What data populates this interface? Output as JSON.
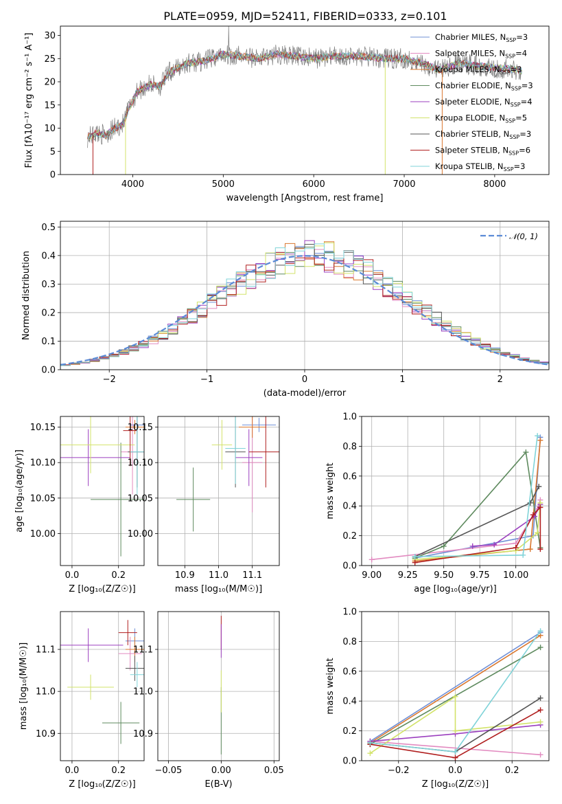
{
  "figure": {
    "title": "PLATE=0959, MJD=52411, FIBERID=0333, z=0.101"
  },
  "palette": {
    "Chabrier MILES": "#6f8fd6",
    "Salpeter MILES": "#e28ac0",
    "Kroupa MILES": "#d9772e",
    "Chabrier ELODIE": "#5e8a5e",
    "Salpeter ELODIE": "#9b3fbf",
    "Kroupa ELODIE": "#d2e36a",
    "Chabrier STELIB": "#555555",
    "Salpeter STELIB": "#b01e1e",
    "Kroupa STELIB": "#7fd3d8"
  },
  "chart_data": [
    {
      "id": "spectrum",
      "type": "line",
      "xlabel": "wavelength [Angstrom, rest frame]",
      "ylabel": "Flux [fλ10⁻¹⁷ erg cm⁻² s⁻¹ A⁻¹]",
      "xlim": [
        3200,
        8600
      ],
      "ylim": [
        0,
        32
      ],
      "xticks": [
        4000,
        5000,
        6000,
        7000,
        8000
      ],
      "yticks": [
        0,
        5,
        10,
        15,
        20,
        25,
        30
      ],
      "grid": false,
      "legend_position": "right",
      "legend": [
        {
          "name": "Chabrier MILES",
          "sub": "SSP",
          "n": "3"
        },
        {
          "name": "Salpeter MILES",
          "sub": "SSP",
          "n": "4"
        },
        {
          "name": "Kroupa MILES",
          "sub": "SSP",
          "n": "3"
        },
        {
          "name": "Chabrier ELODIE",
          "sub": "SSP",
          "n": "3"
        },
        {
          "name": "Salpeter ELODIE",
          "sub": "SSP",
          "n": "4"
        },
        {
          "name": "Kroupa ELODIE",
          "sub": "SSP",
          "n": "5"
        },
        {
          "name": "Chabrier STELIB",
          "sub": "SSP",
          "n": "3"
        },
        {
          "name": "Salpeter STELIB",
          "sub": "SSP",
          "n": "6"
        },
        {
          "name": "Kroupa STELIB",
          "sub": "SSP",
          "n": "3"
        }
      ],
      "continuum": [
        [
          3500,
          8
        ],
        [
          3600,
          9
        ],
        [
          3700,
          8.5
        ],
        [
          3800,
          10
        ],
        [
          3900,
          11
        ],
        [
          3950,
          14
        ],
        [
          4050,
          18
        ],
        [
          4200,
          19.5
        ],
        [
          4300,
          19
        ],
        [
          4400,
          22
        ],
        [
          4600,
          24
        ],
        [
          4800,
          24.5
        ],
        [
          5000,
          26
        ],
        [
          5200,
          25.5
        ],
        [
          5400,
          25
        ],
        [
          5600,
          26
        ],
        [
          5800,
          25.5
        ],
        [
          6000,
          25
        ],
        [
          6200,
          25.5
        ],
        [
          6500,
          25.5
        ],
        [
          6800,
          25
        ],
        [
          7000,
          25
        ],
        [
          7200,
          24
        ],
        [
          7400,
          22.5
        ],
        [
          7600,
          24
        ],
        [
          7800,
          23.5
        ],
        [
          8000,
          23
        ],
        [
          8300,
          22.5
        ]
      ],
      "drops": [
        [
          3560,
          "Salpeter STELIB"
        ],
        [
          3920,
          "Kroupa ELODIE"
        ],
        [
          6790,
          "Kroupa ELODIE"
        ],
        [
          7420,
          "Kroupa MILES"
        ]
      ]
    },
    {
      "id": "residuals",
      "type": "line",
      "xlabel": "(data-model)/error",
      "ylabel": "Normed distribution",
      "xlim": [
        -2.5,
        2.5
      ],
      "ylim": [
        0,
        0.52
      ],
      "xticks": [
        -2,
        -1,
        0,
        1,
        2
      ],
      "yticks": [
        0.0,
        0.1,
        0.2,
        0.3,
        0.4,
        0.5
      ],
      "grid": true,
      "legend_position": "top-right",
      "reference_label": "𝒩(0, 1)",
      "reference": "normal(0,1)",
      "bin_width": 0.1
    },
    {
      "id": "age-vs-Z",
      "type": "scatter",
      "xlabel": "Z [log₁₀(Z/Z☉)]",
      "ylabel": "age  [log₁₀(age/yr)]",
      "xlim": [
        -0.05,
        0.31
      ],
      "ylim": [
        9.955,
        10.165
      ],
      "xticks": [
        0.0,
        0.2
      ],
      "yticks": [
        10.0,
        10.05,
        10.1,
        10.15
      ],
      "grid": true,
      "points": [
        {
          "model": "Chabrier MILES",
          "x": 0.28,
          "y": 10.153,
          "xerr": 0.03,
          "yerr": 0.01
        },
        {
          "model": "Salpeter MILES",
          "x": 0.26,
          "y": 10.115,
          "xerr": 0.05,
          "yerr": 0.06
        },
        {
          "model": "Kroupa MILES",
          "x": 0.27,
          "y": 10.15,
          "xerr": 0.04,
          "yerr": 0.01
        },
        {
          "model": "Chabrier ELODIE",
          "x": 0.21,
          "y": 10.048,
          "xerr": 0.13,
          "yerr": 0.08
        },
        {
          "model": "Salpeter ELODIE",
          "x": 0.07,
          "y": 10.107,
          "xerr": 0.18,
          "yerr": 0.04
        },
        {
          "model": "Kroupa ELODIE",
          "x": 0.08,
          "y": 10.125,
          "xerr": 0.19,
          "yerr": 0.04
        },
        {
          "model": "Chabrier STELIB",
          "x": 0.28,
          "y": 10.115,
          "xerr": 0.04,
          "yerr": 0.05
        },
        {
          "model": "Salpeter STELIB",
          "x": 0.25,
          "y": 10.145,
          "xerr": 0.03,
          "yerr": 0.05
        },
        {
          "model": "Kroupa STELIB",
          "x": 0.28,
          "y": 10.115,
          "xerr": 0.03,
          "yerr": 0.06
        }
      ]
    },
    {
      "id": "age-vs-mass",
      "type": "scatter",
      "xlabel": "mass [log₁₀(M/M☉)]",
      "ylabel": "",
      "xlim": [
        10.82,
        11.18
      ],
      "ylim": [
        9.955,
        10.165
      ],
      "xticks": [
        10.9,
        11.0,
        11.1
      ],
      "yticks": [
        10.0,
        10.05,
        10.1,
        10.15
      ],
      "grid": true,
      "points": [
        {
          "model": "Chabrier MILES",
          "x": 11.12,
          "y": 10.153,
          "xerr": 0.05,
          "yerr": 0.01
        },
        {
          "model": "Salpeter MILES",
          "x": 11.1,
          "y": 10.1,
          "xerr": 0.03,
          "yerr": 0.07
        },
        {
          "model": "Kroupa MILES",
          "x": 11.1,
          "y": 10.15,
          "xerr": 0.04,
          "yerr": 0.015
        },
        {
          "model": "Chabrier ELODIE",
          "x": 10.925,
          "y": 10.048,
          "xerr": 0.05,
          "yerr": 0.045
        },
        {
          "model": "Salpeter ELODIE",
          "x": 11.09,
          "y": 10.107,
          "xerr": 0.04,
          "yerr": 0.04
        },
        {
          "model": "Kroupa ELODIE",
          "x": 11.01,
          "y": 10.125,
          "xerr": 0.03,
          "yerr": 0.035
        },
        {
          "model": "Chabrier STELIB",
          "x": 11.05,
          "y": 10.115,
          "xerr": 0.03,
          "yerr": 0.05
        },
        {
          "model": "Salpeter STELIB",
          "x": 11.14,
          "y": 10.115,
          "xerr": 0.05,
          "yerr": 0.05
        },
        {
          "model": "Kroupa STELIB",
          "x": 11.05,
          "y": 10.12,
          "xerr": 0.03,
          "yerr": 0.05
        }
      ]
    },
    {
      "id": "weight-vs-age",
      "type": "line",
      "xlabel": "age  [log₁₀(age/yr)]",
      "ylabel": "mass weight",
      "xlim": [
        8.93,
        10.23
      ],
      "ylim": [
        0.0,
        1.0
      ],
      "xticks": [
        9.0,
        9.25,
        9.5,
        9.75,
        10.0
      ],
      "yticks": [
        0.0,
        0.2,
        0.4,
        0.6,
        0.8,
        1.0
      ],
      "grid": true,
      "series": [
        {
          "model": "Chabrier MILES",
          "x": [
            9.3,
            10.12,
            10.17
          ],
          "y": [
            0.05,
            0.2,
            0.86
          ]
        },
        {
          "model": "Salpeter MILES",
          "x": [
            9.0,
            10.0,
            10.15,
            10.17
          ],
          "y": [
            0.04,
            0.15,
            0.38,
            0.44
          ]
        },
        {
          "model": "Kroupa MILES",
          "x": [
            9.3,
            10.1,
            10.17
          ],
          "y": [
            0.03,
            0.11,
            0.84
          ]
        },
        {
          "model": "Chabrier ELODIE",
          "x": [
            9.3,
            9.5,
            10.07,
            10.17
          ],
          "y": [
            0.05,
            0.13,
            0.76,
            0.12
          ]
        },
        {
          "model": "Salpeter ELODIE",
          "x": [
            9.7,
            9.85,
            10.13,
            10.17
          ],
          "y": [
            0.13,
            0.14,
            0.33,
            0.41
          ]
        },
        {
          "model": "Kroupa ELODIE",
          "x": [
            9.3,
            10.0,
            10.15,
            10.17
          ],
          "y": [
            0.04,
            0.1,
            0.22,
            0.42
          ]
        },
        {
          "model": "Chabrier STELIB",
          "x": [
            9.3,
            10.1,
            10.16
          ],
          "y": [
            0.06,
            0.42,
            0.53
          ]
        },
        {
          "model": "Salpeter STELIB",
          "x": [
            9.3,
            10.0,
            10.12,
            10.17,
            10.17
          ],
          "y": [
            0.02,
            0.12,
            0.34,
            0.39,
            0.11
          ]
        },
        {
          "model": "Kroupa STELIB",
          "x": [
            9.3,
            10.05,
            10.15
          ],
          "y": [
            0.06,
            0.07,
            0.87
          ]
        }
      ]
    },
    {
      "id": "mass-vs-Z",
      "type": "scatter",
      "xlabel": "Z [log₁₀(Z/Z☉)]",
      "ylabel": "mass [log₁₀(M/M☉)]",
      "xlim": [
        -0.05,
        0.31
      ],
      "ylim": [
        10.835,
        11.19
      ],
      "xticks": [
        0.0,
        0.2
      ],
      "yticks": [
        10.9,
        11.0,
        11.1
      ],
      "grid": true,
      "points": [
        {
          "model": "Chabrier MILES",
          "x": 0.27,
          "y": 11.12,
          "xerr": 0.04,
          "yerr": 0.03
        },
        {
          "model": "Salpeter MILES",
          "x": 0.25,
          "y": 11.09,
          "xerr": 0.05,
          "yerr": 0.04
        },
        {
          "model": "Kroupa MILES",
          "x": 0.27,
          "y": 11.1,
          "xerr": 0.04,
          "yerr": 0.03
        },
        {
          "model": "Chabrier ELODIE",
          "x": 0.21,
          "y": 10.925,
          "xerr": 0.08,
          "yerr": 0.05
        },
        {
          "model": "Salpeter ELODIE",
          "x": 0.07,
          "y": 11.11,
          "xerr": 0.15,
          "yerr": 0.04
        },
        {
          "model": "Kroupa ELODIE",
          "x": 0.08,
          "y": 11.01,
          "xerr": 0.1,
          "yerr": 0.03
        },
        {
          "model": "Chabrier STELIB",
          "x": 0.27,
          "y": 11.055,
          "xerr": 0.04,
          "yerr": 0.03
        },
        {
          "model": "Salpeter STELIB",
          "x": 0.24,
          "y": 11.14,
          "xerr": 0.04,
          "yerr": 0.03
        },
        {
          "model": "Kroupa STELIB",
          "x": 0.28,
          "y": 11.04,
          "xerr": 0.03,
          "yerr": 0.03
        }
      ]
    },
    {
      "id": "mass-vs-ebv",
      "type": "scatter",
      "xlabel": "E(B-V)",
      "ylabel": "",
      "xlim": [
        -0.06,
        0.055
      ],
      "ylim": [
        10.835,
        11.19
      ],
      "xticks": [
        -0.05,
        0.0,
        0.05
      ],
      "yticks": [
        10.9,
        11.0,
        11.1
      ],
      "grid": true,
      "points": [
        {
          "model": "Chabrier ELODIE",
          "x": 0.0,
          "y": 10.93,
          "xerr": 0.0,
          "yerr": 0.08
        },
        {
          "model": "Kroupa ELODIE",
          "x": 0.0,
          "y": 11.0,
          "xerr": 0.0,
          "yerr": 0.05
        },
        {
          "model": "Salpeter STELIB",
          "x": 0.0,
          "y": 11.14,
          "xerr": 0.0,
          "yerr": 0.04
        },
        {
          "model": "Salpeter ELODIE",
          "x": 0.0,
          "y": 11.12,
          "xerr": 0.0,
          "yerr": 0.04
        }
      ]
    },
    {
      "id": "weight-vs-Z",
      "type": "line",
      "xlabel": "Z [log₁₀(Z/Z☉)]",
      "ylabel": "mass weight",
      "xlim": [
        -0.33,
        0.33
      ],
      "ylim": [
        0.0,
        1.0
      ],
      "xticks": [
        -0.2,
        0.0,
        0.2
      ],
      "yticks": [
        0.0,
        0.2,
        0.4,
        0.6,
        0.8,
        1.0
      ],
      "grid": true,
      "series": [
        {
          "model": "Chabrier MILES",
          "x": [
            -0.3,
            0.3
          ],
          "y": [
            0.13,
            0.86
          ]
        },
        {
          "model": "Salpeter MILES",
          "x": [
            -0.3,
            0.3
          ],
          "y": [
            0.13,
            0.04
          ]
        },
        {
          "model": "Kroupa MILES",
          "x": [
            -0.3,
            0.3
          ],
          "y": [
            0.12,
            0.84
          ]
        },
        {
          "model": "Chabrier ELODIE",
          "x": [
            -0.3,
            0.3
          ],
          "y": [
            0.11,
            0.76
          ]
        },
        {
          "model": "Salpeter ELODIE",
          "x": [
            -0.3,
            0.0,
            0.3
          ],
          "y": [
            0.13,
            0.18,
            0.24
          ]
        },
        {
          "model": "Kroupa ELODIE",
          "x": [
            -0.3,
            0.0,
            0.0,
            0.3
          ],
          "y": [
            0.05,
            0.43,
            0.2,
            0.26
          ]
        },
        {
          "model": "Chabrier STELIB",
          "x": [
            -0.3,
            0.0,
            0.3
          ],
          "y": [
            0.12,
            0.06,
            0.42
          ]
        },
        {
          "model": "Salpeter STELIB",
          "x": [
            -0.3,
            0.0,
            0.3
          ],
          "y": [
            0.11,
            0.02,
            0.34
          ]
        },
        {
          "model": "Kroupa STELIB",
          "x": [
            -0.3,
            0.0,
            0.3
          ],
          "y": [
            0.12,
            0.06,
            0.87
          ]
        }
      ]
    }
  ]
}
